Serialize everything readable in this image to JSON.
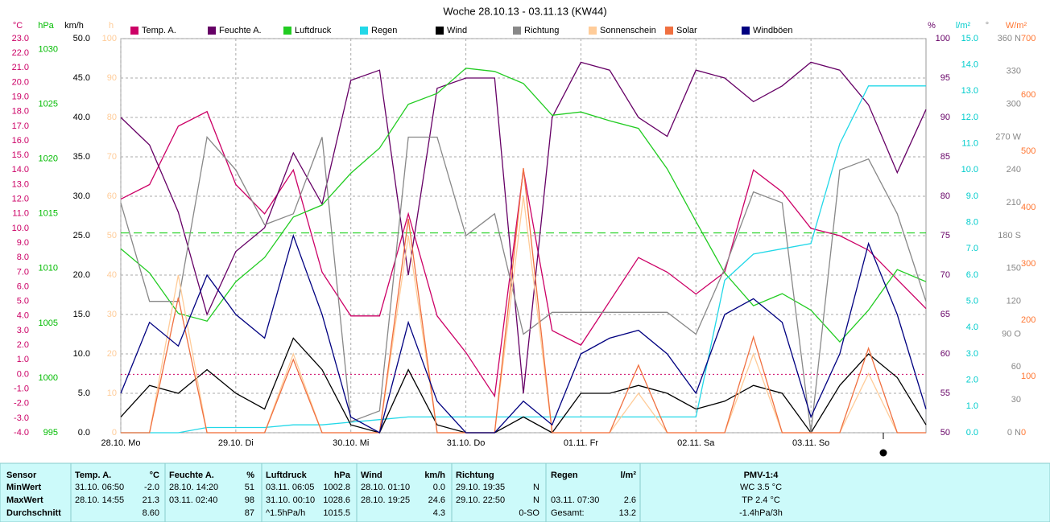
{
  "chart_data": {
    "type": "line",
    "title": "Woche 28.10.13 - 03.11.13 (KW44)",
    "x": [
      0,
      6,
      12,
      18,
      24,
      30,
      36,
      42,
      48,
      54,
      60,
      66,
      72,
      78,
      84,
      90,
      96,
      102,
      108,
      114,
      120,
      126,
      132,
      138,
      144,
      150,
      156,
      162,
      168
    ],
    "xlim": [
      0,
      168
    ],
    "xticks": [
      {
        "value": 0,
        "label": "28.10. Mo"
      },
      {
        "value": 24,
        "label": "29.10. Di"
      },
      {
        "value": 48,
        "label": "30.10. Mi"
      },
      {
        "value": 72,
        "label": "31.10. Do"
      },
      {
        "value": 96,
        "label": "01.11. Fr"
      },
      {
        "value": 120,
        "label": "02.11. Sa"
      },
      {
        "value": 144,
        "label": "03.11. So"
      }
    ],
    "grid": true,
    "axes": [
      {
        "unit": "°C",
        "color": "#cc0066",
        "lim": [
          -4,
          23
        ],
        "ticks": [
          {
            "value": -4,
            "label": "-4.0"
          },
          {
            "value": -3,
            "label": "-3.0"
          },
          {
            "value": -2,
            "label": "-2.0"
          },
          {
            "value": -1,
            "label": "-1.0"
          },
          {
            "value": 0,
            "label": "0.0"
          },
          {
            "value": 1,
            "label": "1.0"
          },
          {
            "value": 2,
            "label": "2.0"
          },
          {
            "value": 3,
            "label": "3.0"
          },
          {
            "value": 4,
            "label": "4.0"
          },
          {
            "value": 5,
            "label": "5.0"
          },
          {
            "value": 6,
            "label": "6.0"
          },
          {
            "value": 7,
            "label": "7.0"
          },
          {
            "value": 8,
            "label": "8.0"
          },
          {
            "value": 9,
            "label": "9.0"
          },
          {
            "value": 10,
            "label": "10.0"
          },
          {
            "value": 11,
            "label": "11.0"
          },
          {
            "value": 12,
            "label": "12.0"
          },
          {
            "value": 13,
            "label": "13.0"
          },
          {
            "value": 14,
            "label": "14.0"
          },
          {
            "value": 15,
            "label": "15.0"
          },
          {
            "value": 16,
            "label": "16.0"
          },
          {
            "value": 17,
            "label": "17.0"
          },
          {
            "value": 18,
            "label": "18.0"
          },
          {
            "value": 19,
            "label": "19.0"
          },
          {
            "value": 20,
            "label": "20.0"
          },
          {
            "value": 21,
            "label": "21.0"
          },
          {
            "value": 22,
            "label": "22.0"
          },
          {
            "value": 23,
            "label": "23.0"
          }
        ]
      },
      {
        "unit": "hPa",
        "color": "#00bb00",
        "lim": [
          995,
          1031
        ],
        "ticks": [
          995,
          1000,
          1005,
          1010,
          1015,
          1020,
          1025,
          1030
        ]
      },
      {
        "unit": "km/h",
        "color": "#000000",
        "lim": [
          0,
          50
        ],
        "ticks": [
          {
            "value": 0,
            "label": "0.0"
          },
          {
            "value": 5,
            "label": "5.0"
          },
          {
            "value": 10,
            "label": "10.0"
          },
          {
            "value": 15,
            "label": "15.0"
          },
          {
            "value": 20,
            "label": "20.0"
          },
          {
            "value": 25,
            "label": "25.0"
          },
          {
            "value": 30,
            "label": "30.0"
          },
          {
            "value": 35,
            "label": "35.0"
          },
          {
            "value": 40,
            "label": "40.0"
          },
          {
            "value": 45,
            "label": "45.0"
          },
          {
            "value": 50,
            "label": "50.0"
          }
        ]
      },
      {
        "unit": "h",
        "color": "#ffcc99",
        "lim": [
          0,
          100
        ],
        "ticks": [
          0,
          10,
          20,
          30,
          40,
          50,
          60,
          70,
          80,
          90,
          100
        ]
      },
      {
        "unit": "%",
        "color": "#660066",
        "lim": [
          50,
          100
        ],
        "ticks": [
          50,
          55,
          60,
          65,
          70,
          75,
          80,
          85,
          90,
          95,
          100
        ]
      },
      {
        "unit": "l/m²",
        "color": "#00cccc",
        "lim": [
          0,
          15
        ],
        "ticks": [
          {
            "value": 0,
            "label": "0.0"
          },
          {
            "value": 1,
            "label": "1.0"
          },
          {
            "value": 2,
            "label": "2.0"
          },
          {
            "value": 3,
            "label": "3.0"
          },
          {
            "value": 4,
            "label": "4.0"
          },
          {
            "value": 5,
            "label": "5.0"
          },
          {
            "value": 6,
            "label": "6.0"
          },
          {
            "value": 7,
            "label": "7.0"
          },
          {
            "value": 8,
            "label": "8.0"
          },
          {
            "value": 9,
            "label": "9.0"
          },
          {
            "value": 10,
            "label": "10.0"
          },
          {
            "value": 11,
            "label": "11.0"
          },
          {
            "value": 12,
            "label": "12.0"
          },
          {
            "value": 13,
            "label": "13.0"
          },
          {
            "value": 14,
            "label": "14.0"
          },
          {
            "value": 15,
            "label": "15.0"
          }
        ]
      },
      {
        "unit": "°",
        "color": "#888888",
        "lim": [
          0,
          360
        ],
        "ticks": [
          {
            "value": 0,
            "label": "0 N"
          },
          30,
          60,
          {
            "value": 90,
            "label": "90 O"
          },
          120,
          150,
          {
            "value": 180,
            "label": "180 S"
          },
          210,
          240,
          {
            "value": 270,
            "label": "270 W"
          },
          300,
          330,
          {
            "value": 360,
            "label": "360 N"
          }
        ]
      },
      {
        "unit": "W/m²",
        "color": "#ff7733",
        "lim": [
          0,
          700
        ],
        "ticks": [
          0,
          100,
          200,
          300,
          400,
          500,
          600,
          700
        ]
      }
    ],
    "reference_lines": [
      {
        "axis": 1,
        "value": 1013.25,
        "color": "#00cc00"
      },
      {
        "axis": 0,
        "value": 0,
        "color": "#cc0066"
      }
    ],
    "series": [
      {
        "name": "Temp. A.",
        "color": "#cc0066",
        "axis": 0,
        "values": [
          12,
          13,
          17,
          18,
          13,
          11,
          14,
          7,
          4,
          4,
          11,
          4,
          1.5,
          -1.5,
          14,
          3,
          2,
          5,
          8,
          7,
          5.5,
          7,
          14,
          12.5,
          10,
          9.5,
          8.5,
          6.5,
          4.5
        ]
      },
      {
        "name": "Feuchte A.",
        "color": "#660066",
        "axis": 4,
        "values": [
          90,
          86.5,
          78,
          65,
          73,
          76,
          85.5,
          79,
          94.7,
          96,
          70,
          93.7,
          95,
          95,
          55,
          90,
          97,
          96,
          90,
          87.6,
          96,
          95,
          92,
          94,
          97,
          96,
          91.6,
          83,
          91
        ]
      },
      {
        "name": "Luftdruck",
        "color": "#22cc22",
        "axis": 1,
        "values": [
          1011.8,
          1009.6,
          1005.9,
          1005.2,
          1008.8,
          1011,
          1014.7,
          1015.8,
          1018.7,
          1021,
          1025,
          1026,
          1028.3,
          1028,
          1026.9,
          1024,
          1024.3,
          1023.5,
          1022.8,
          1019.1,
          1014.3,
          1009.6,
          1006.6,
          1007.7,
          1006.2,
          1003.3,
          1006.2,
          1009.9,
          1008.8
        ]
      },
      {
        "name": "Regen",
        "color": "#22d8e8",
        "axis": 5,
        "values": [
          0,
          0,
          0,
          0.2,
          0.2,
          0.2,
          0.3,
          0.3,
          0.4,
          0.5,
          0.6,
          0.6,
          0.6,
          0.6,
          0.6,
          0.6,
          0.6,
          0.6,
          0.6,
          0.6,
          0.6,
          5.8,
          6.8,
          7,
          7.2,
          11,
          13.2,
          13.2,
          13.2
        ]
      },
      {
        "name": "Wind",
        "color": "#000000",
        "axis": 2,
        "values": [
          2,
          6,
          5,
          8,
          5,
          3,
          12,
          8,
          1,
          0,
          8,
          1,
          0,
          0,
          2,
          0,
          5,
          5,
          6,
          5,
          3,
          4,
          6,
          5,
          0,
          6,
          10,
          7,
          1
        ]
      },
      {
        "name": "Richtung",
        "color": "#888888",
        "axis": 6,
        "values": [
          210,
          120,
          120,
          270,
          240,
          190,
          200,
          270,
          10,
          20,
          270,
          270,
          180,
          200,
          90,
          110,
          110,
          110,
          110,
          110,
          90,
          150,
          220,
          210,
          0,
          240,
          250,
          200,
          120
        ]
      },
      {
        "name": "Sonnenschein",
        "color": "#ffcc99",
        "axis": 3,
        "values": [
          0,
          0,
          40,
          0,
          0,
          0,
          20,
          0,
          0,
          0,
          50,
          0,
          0,
          0,
          60,
          0,
          0,
          0,
          10,
          0,
          0,
          0,
          20,
          0,
          0,
          0,
          15,
          0,
          0
        ]
      },
      {
        "name": "Solar",
        "color": "#f07040",
        "axis": 7,
        "values": [
          0,
          0,
          240,
          0,
          0,
          0,
          130,
          0,
          0,
          0,
          380,
          0,
          0,
          0,
          470,
          0,
          0,
          0,
          120,
          0,
          0,
          0,
          170,
          0,
          0,
          0,
          150,
          0,
          0
        ]
      },
      {
        "name": "Windböen",
        "color": "#000080",
        "axis": 2,
        "values": [
          5,
          14,
          11,
          20,
          15,
          12,
          25,
          15,
          2,
          0,
          14,
          4,
          0,
          0,
          4,
          1,
          10,
          12,
          13,
          10,
          5,
          15,
          17,
          14,
          2,
          10,
          24,
          15,
          3
        ]
      }
    ]
  },
  "table": {
    "columns": [
      {
        "name": "Sensor"
      },
      {
        "name": "Temp. A.",
        "unit": "°C"
      },
      {
        "name": "Feuchte A.",
        "unit": "%"
      },
      {
        "name": "Luftdruck",
        "unit": "hPa"
      },
      {
        "name": "Wind",
        "unit": "km/h"
      },
      {
        "name": "Richtung"
      },
      {
        "name": "Regen",
        "unit": "l/m²"
      },
      {
        "name": "PMV-1:4"
      }
    ],
    "rows": [
      {
        "label": "MinWert",
        "cells": [
          {
            "time": "31.10. 06:50",
            "value": "-2.0"
          },
          {
            "time": "28.10. 14:20",
            "value": "51"
          },
          {
            "time": "03.11. 06:05",
            "value": "1002.8"
          },
          {
            "time": "28.10. 01:10",
            "value": "0.0"
          },
          {
            "time": "29.10. 19:35",
            "value": "N"
          },
          {},
          {
            "text": "WC 3.5 °C"
          }
        ]
      },
      {
        "label": "MaxWert",
        "cells": [
          {
            "time": "28.10. 14:55",
            "value": "21.3"
          },
          {
            "time": "03.11. 02:40",
            "value": "98"
          },
          {
            "time": "31.10. 00:10",
            "value": "1028.6"
          },
          {
            "time": "28.10. 19:25",
            "value": "24.6"
          },
          {
            "time": "29.10. 22:50",
            "value": "N"
          },
          {
            "time": "03.11. 07:30",
            "value": "2.6"
          },
          {
            "text": "TP 2.4 °C"
          }
        ]
      },
      {
        "label": "Durchschnitt",
        "cells": [
          {
            "value": "8.60"
          },
          {
            "value": "87"
          },
          {
            "time": "^1.5hPa/h",
            "value": "1015.5"
          },
          {
            "value": "4.3"
          },
          {
            "value": "0-SO"
          },
          {
            "time": "Gesamt:",
            "value": "13.2"
          },
          {
            "text": "-1.4hPa/3h"
          }
        ]
      }
    ]
  }
}
